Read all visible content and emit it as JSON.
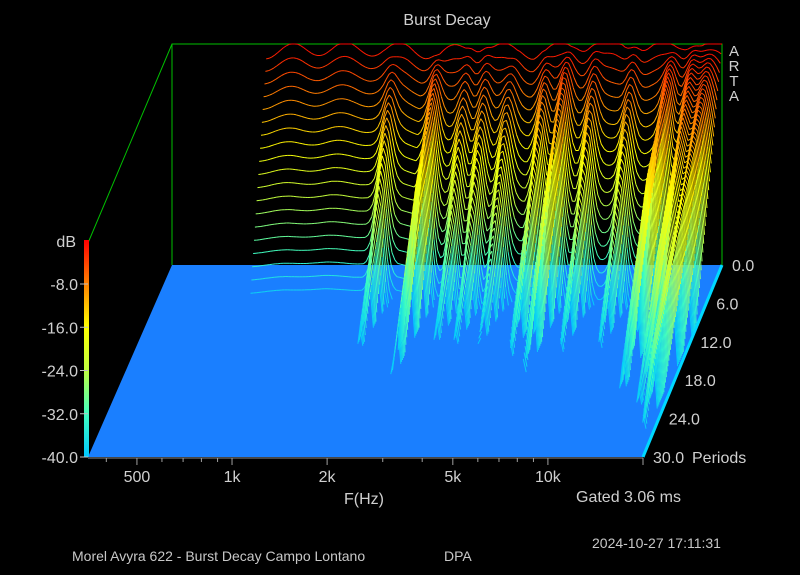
{
  "chart_data": {
    "type": "area",
    "title": "Burst Decay",
    "xlabel": "F(Hz)",
    "zlabel": "dB",
    "ylabel": "Periods",
    "x_ticks": [
      {
        "label": "500",
        "hz": 500
      },
      {
        "label": "1k",
        "hz": 1000
      },
      {
        "label": "2k",
        "hz": 2000
      },
      {
        "label": "5k",
        "hz": 5000
      },
      {
        "label": "10k",
        "hz": 10000
      }
    ],
    "z_ticks": [
      "-8.0",
      "-16.0",
      "-24.0",
      "-32.0",
      "-40.0"
    ],
    "z_range": [
      -40,
      0
    ],
    "y_ticks": [
      "0.0",
      "6.0",
      "12.0",
      "18.0",
      "24.0",
      "30.0"
    ],
    "y_range": [
      0,
      30
    ],
    "x_range_hz": [
      350,
      20000
    ],
    "log_x": true,
    "colormap": [
      "#00c8ff",
      "#40ffc0",
      "#c0ff40",
      "#ffff00",
      "#ff8000",
      "#ff0000"
    ],
    "floor_color": "#1a7fff",
    "frame_color": "#00c000",
    "front_profile": {
      "hz": [
        700,
        900,
        1200,
        1500,
        2000,
        2500,
        3000,
        3500,
        4000,
        5000,
        6000,
        7000,
        8000,
        10000,
        12000,
        14000,
        16000,
        18000,
        20000
      ],
      "db": [
        -1.5,
        -1.0,
        -0.8,
        -1.0,
        -0.9,
        -2.0,
        -0.8,
        -0.5,
        -1.0,
        -1.6,
        -0.8,
        -0.3,
        0.0,
        -0.6,
        -0.4,
        -0.8,
        -0.5,
        0.0,
        -1.0
      ]
    },
    "decay_peaks": [
      {
        "hz": 1800,
        "db": -20,
        "periods": 6
      },
      {
        "hz": 2500,
        "db": -14,
        "periods": 8
      },
      {
        "hz": 3100,
        "db": -22,
        "periods": 6
      },
      {
        "hz": 3600,
        "db": -24,
        "periods": 7
      },
      {
        "hz": 4300,
        "db": -30,
        "periods": 9
      },
      {
        "hz": 5600,
        "db": -16,
        "periods": 6
      },
      {
        "hz": 6500,
        "db": -12,
        "periods": 7
      },
      {
        "hz": 8000,
        "db": -18,
        "periods": 6
      },
      {
        "hz": 10500,
        "db": -22,
        "periods": 7
      },
      {
        "hz": 14000,
        "db": -12,
        "periods": 10
      },
      {
        "hz": 16500,
        "db": -20,
        "periods": 14
      },
      {
        "hz": 18500,
        "db": -28,
        "periods": 22
      }
    ]
  },
  "brand": [
    "A",
    "R",
    "T",
    "A"
  ],
  "gated_label": "Gated 3.06 ms",
  "footer": {
    "description": "Morel Avyra 622 - Burst Decay Campo Lontano",
    "tag": "DPA",
    "timestamp": "2024-10-27  17:11:31"
  }
}
